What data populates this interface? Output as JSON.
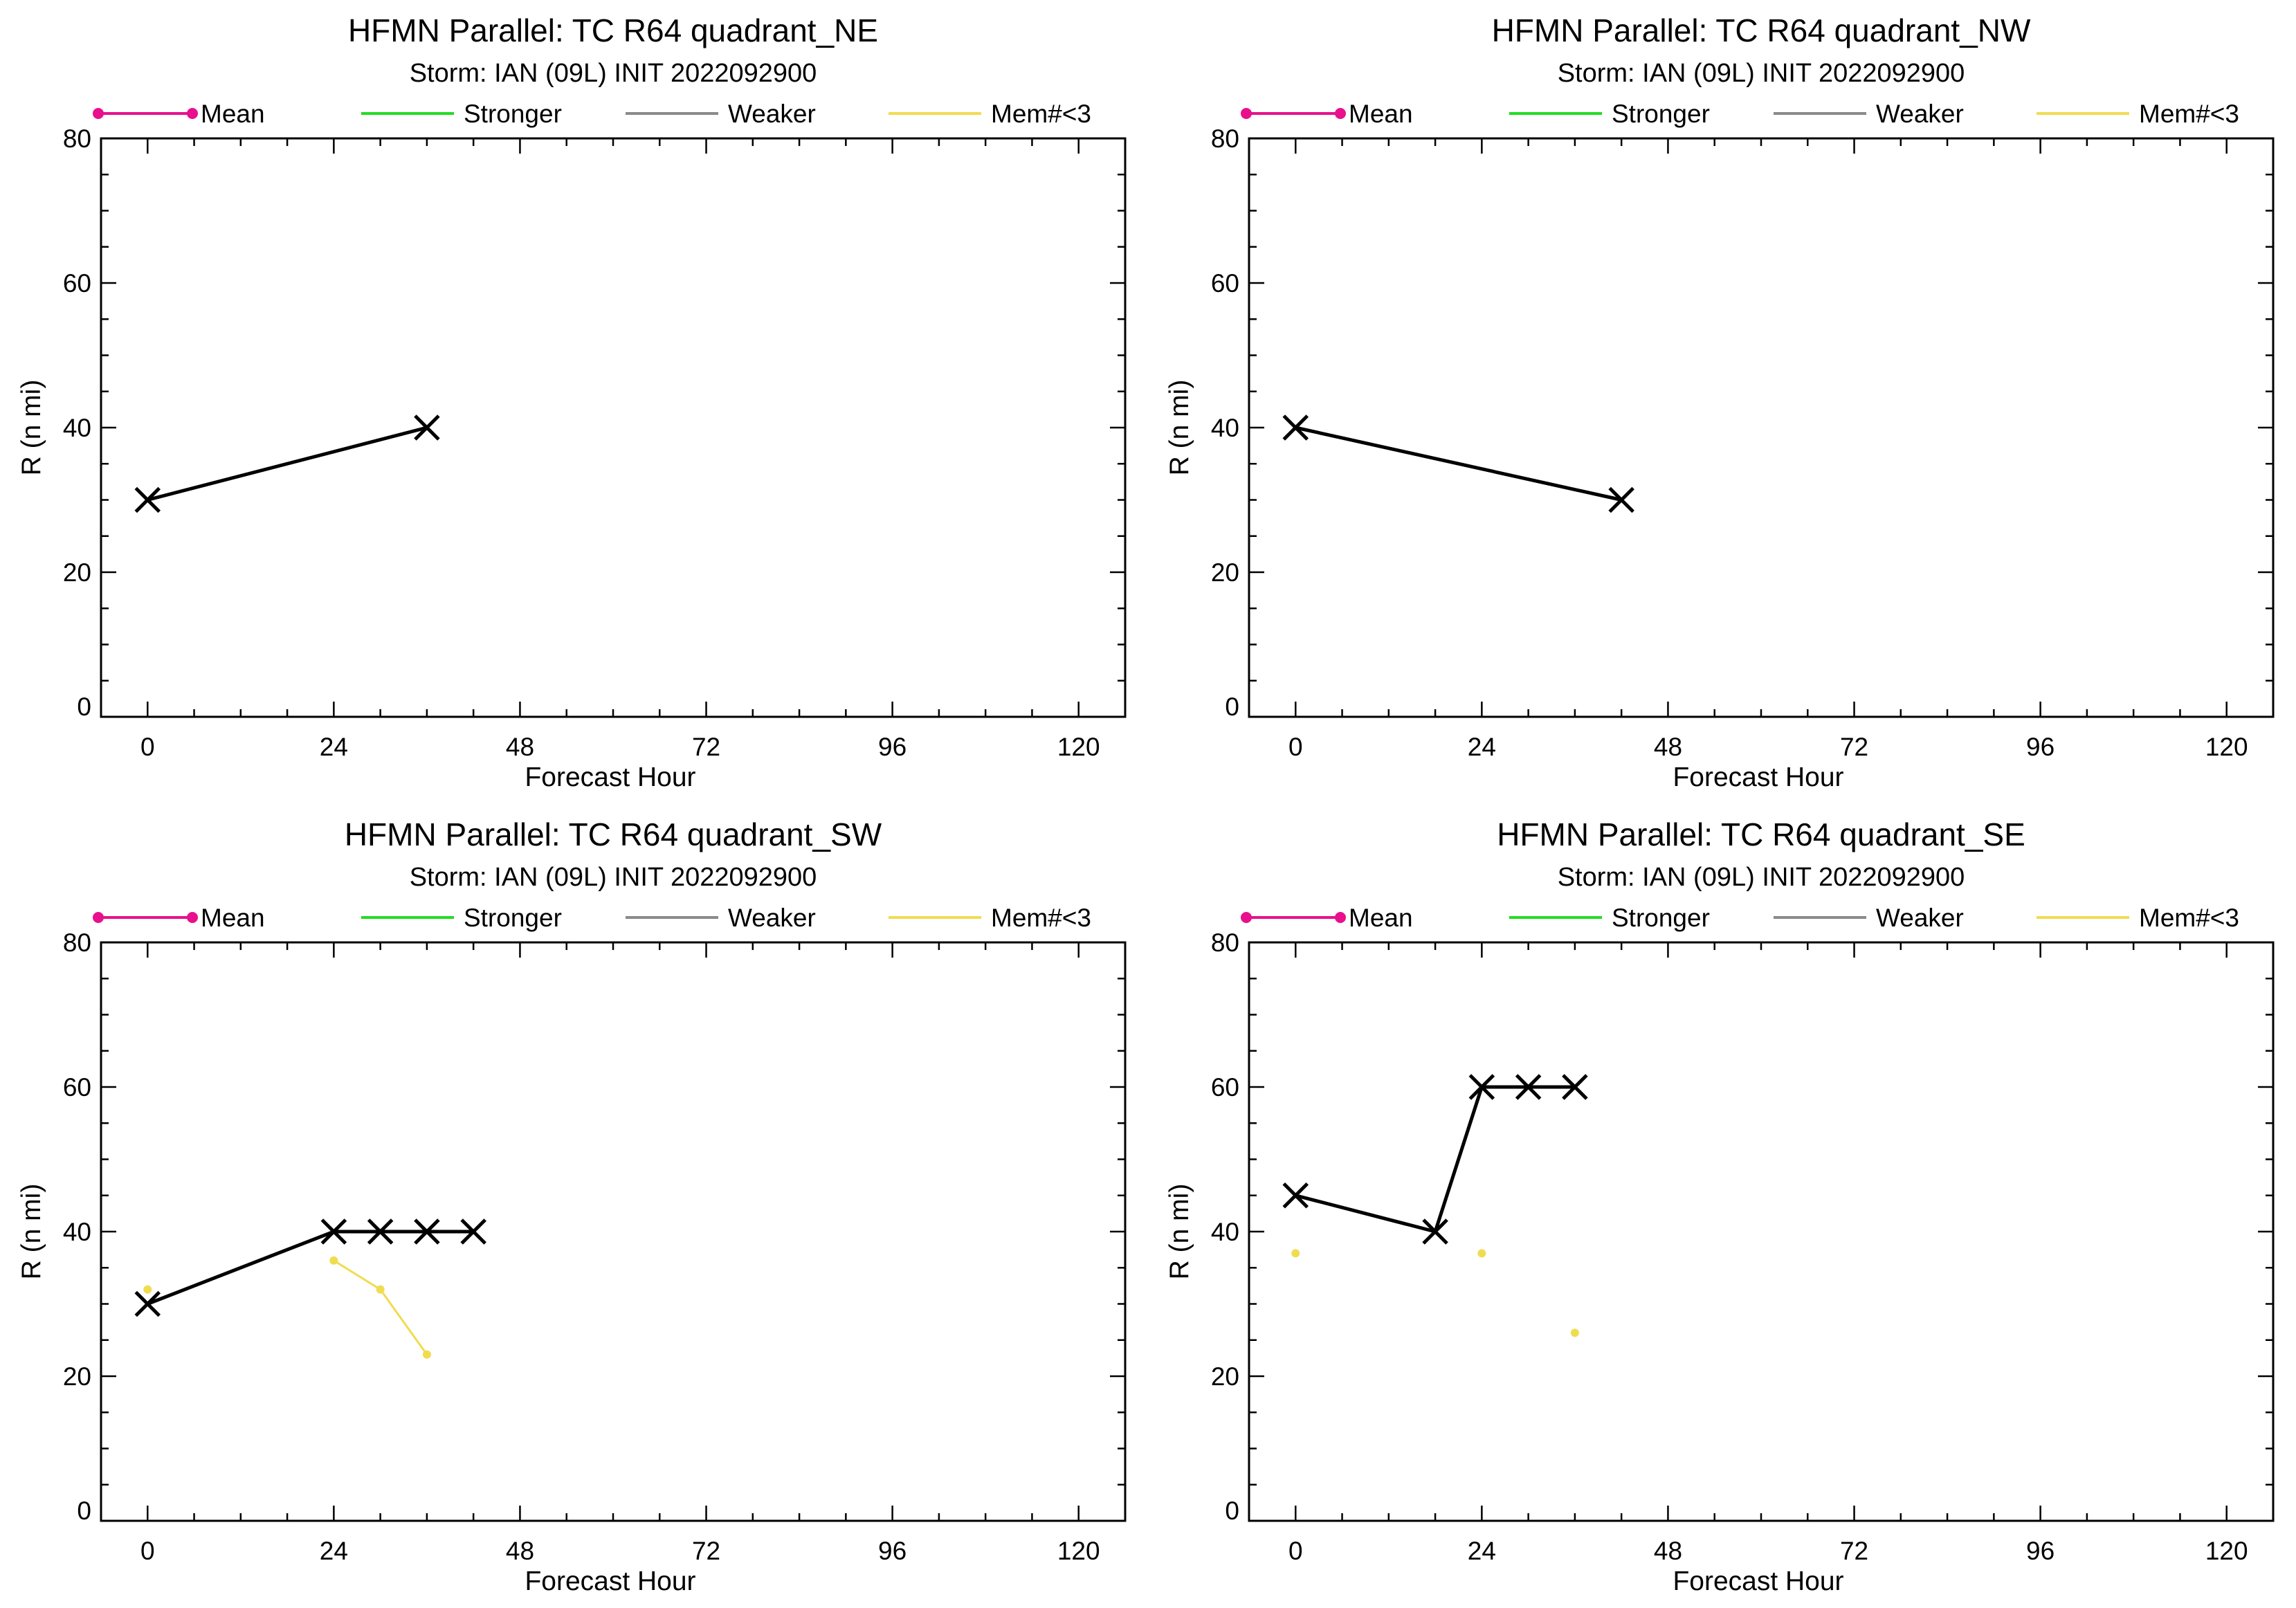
{
  "legend": {
    "mean": {
      "label": "Mean",
      "color": "#e8108c"
    },
    "stronger": {
      "label": "Stronger",
      "color": "#22dd22"
    },
    "weaker": {
      "label": "Weaker",
      "color": "#8a8a8a"
    },
    "few": {
      "label": "Mem#<3",
      "color": "#f0dc50"
    }
  },
  "chart_data": [
    {
      "type": "line",
      "title": "HFMN Parallel: TC  R64 quadrant_NE",
      "subtitle": "Storm: IAN (09L) INIT 2022092900",
      "xlabel": "Forecast Hour",
      "ylabel": "R (n mi)",
      "xlim": [
        -6,
        126
      ],
      "ylim": [
        0,
        80
      ],
      "x_ticks": [
        0,
        24,
        48,
        72,
        96,
        120
      ],
      "y_ticks": [
        0,
        20,
        40,
        60,
        80
      ],
      "series": [
        {
          "role": "actual",
          "color": "#000000",
          "x": [
            0,
            36
          ],
          "y": [
            30,
            40
          ]
        },
        {
          "role": "few",
          "color": "#f0dc50",
          "x": [],
          "y": []
        }
      ]
    },
    {
      "type": "line",
      "title": "HFMN Parallel: TC  R64 quadrant_NW",
      "subtitle": "Storm: IAN (09L) INIT 2022092900",
      "xlabel": "Forecast Hour",
      "ylabel": "R (n mi)",
      "xlim": [
        -6,
        126
      ],
      "ylim": [
        0,
        80
      ],
      "x_ticks": [
        0,
        24,
        48,
        72,
        96,
        120
      ],
      "y_ticks": [
        0,
        20,
        40,
        60,
        80
      ],
      "series": [
        {
          "role": "actual",
          "color": "#000000",
          "x": [
            0,
            42
          ],
          "y": [
            40,
            30
          ]
        },
        {
          "role": "few",
          "color": "#f0dc50",
          "x": [],
          "y": []
        }
      ]
    },
    {
      "type": "line",
      "title": "HFMN Parallel: TC  R64 quadrant_SW",
      "subtitle": "Storm: IAN (09L) INIT 2022092900",
      "xlabel": "Forecast Hour",
      "ylabel": "R (n mi)",
      "xlim": [
        -6,
        126
      ],
      "ylim": [
        0,
        80
      ],
      "x_ticks": [
        0,
        24,
        48,
        72,
        96,
        120
      ],
      "y_ticks": [
        0,
        20,
        40,
        60,
        80
      ],
      "series": [
        {
          "role": "actual",
          "color": "#000000",
          "x": [
            0,
            24,
            30,
            36,
            42
          ],
          "y": [
            30,
            40,
            40,
            40,
            40
          ]
        },
        {
          "role": "few",
          "color": "#f0dc50",
          "x": [
            0
          ],
          "y": [
            32
          ]
        },
        {
          "role": "few",
          "color": "#f0dc50",
          "x": [
            24,
            30,
            36
          ],
          "y": [
            36,
            32,
            23
          ]
        }
      ]
    },
    {
      "type": "line",
      "title": "HFMN Parallel: TC  R64 quadrant_SE",
      "subtitle": "Storm: IAN (09L) INIT 2022092900",
      "xlabel": "Forecast Hour",
      "ylabel": "R (n mi)",
      "xlim": [
        -6,
        126
      ],
      "ylim": [
        0,
        80
      ],
      "x_ticks": [
        0,
        24,
        48,
        72,
        96,
        120
      ],
      "y_ticks": [
        0,
        20,
        40,
        60,
        80
      ],
      "series": [
        {
          "role": "actual",
          "color": "#000000",
          "x": [
            0,
            18,
            24,
            30,
            36
          ],
          "y": [
            45,
            40,
            60,
            60,
            60
          ]
        },
        {
          "role": "few",
          "color": "#f0dc50",
          "x": [
            0
          ],
          "y": [
            37
          ]
        },
        {
          "role": "few",
          "color": "#f0dc50",
          "x": [
            24
          ],
          "y": [
            37
          ]
        },
        {
          "role": "few",
          "color": "#f0dc50",
          "x": [
            36
          ],
          "y": [
            26
          ]
        }
      ]
    }
  ]
}
